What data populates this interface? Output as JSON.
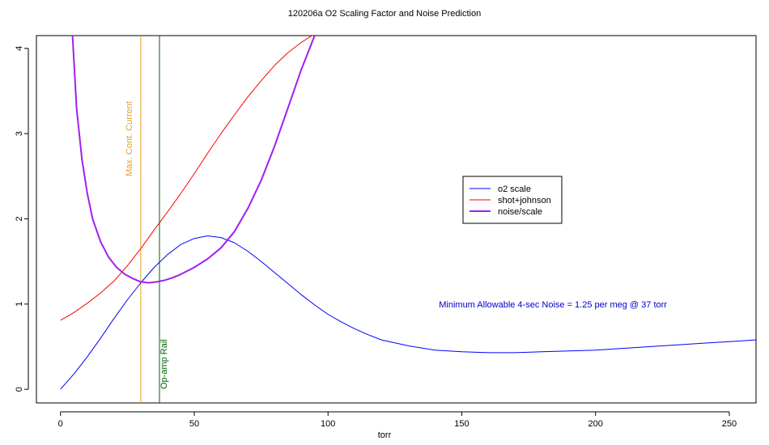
{
  "chart_data": {
    "type": "line",
    "title": "120206a   O2 Scaling Factor and Noise Prediction",
    "xlabel": "torr",
    "ylabel": "",
    "xlim": [
      -9,
      260
    ],
    "ylim": [
      -0.16,
      4.15
    ],
    "xticks": [
      0,
      50,
      100,
      150,
      200,
      250
    ],
    "yticks": [
      0,
      1,
      2,
      3,
      4
    ],
    "grid": false,
    "legend_position": "right-center",
    "series": [
      {
        "name": "o2 scale",
        "color": "#0000ff",
        "width": 1,
        "x": [
          0,
          5,
          10,
          15,
          20,
          25,
          30,
          35,
          40,
          45,
          50,
          55,
          60,
          65,
          70,
          75,
          80,
          85,
          90,
          95,
          100,
          105,
          110,
          115,
          120,
          130,
          140,
          150,
          160,
          170,
          180,
          190,
          200,
          210,
          220,
          230,
          240,
          250,
          260
        ],
        "y": [
          0.0,
          0.18,
          0.38,
          0.6,
          0.83,
          1.05,
          1.25,
          1.43,
          1.58,
          1.7,
          1.77,
          1.8,
          1.78,
          1.72,
          1.62,
          1.5,
          1.37,
          1.24,
          1.11,
          0.99,
          0.88,
          0.79,
          0.71,
          0.64,
          0.58,
          0.51,
          0.46,
          0.44,
          0.43,
          0.43,
          0.44,
          0.45,
          0.46,
          0.48,
          0.5,
          0.52,
          0.54,
          0.56,
          0.58
        ]
      },
      {
        "name": "shot+johnson",
        "color": "#ff0000",
        "width": 1,
        "x": [
          0,
          5,
          10,
          15,
          20,
          25,
          30,
          35,
          40,
          45,
          50,
          55,
          60,
          65,
          70,
          75,
          80,
          85,
          90,
          95
        ],
        "y": [
          0.81,
          0.9,
          1.01,
          1.13,
          1.27,
          1.45,
          1.65,
          1.87,
          2.08,
          2.3,
          2.53,
          2.77,
          3.0,
          3.22,
          3.43,
          3.62,
          3.8,
          3.95,
          4.07,
          4.17
        ]
      },
      {
        "name": "noise/scale",
        "color": "#a020f0",
        "width": 2,
        "x": [
          4.5,
          6,
          8,
          10,
          12,
          15,
          18,
          21,
          24,
          27,
          30,
          33,
          36,
          39,
          42,
          45,
          50,
          55,
          60,
          65,
          70,
          75,
          80,
          85,
          90,
          95
        ],
        "y": [
          4.15,
          3.3,
          2.7,
          2.3,
          2.0,
          1.73,
          1.55,
          1.43,
          1.35,
          1.3,
          1.26,
          1.25,
          1.26,
          1.28,
          1.31,
          1.35,
          1.43,
          1.53,
          1.66,
          1.85,
          2.12,
          2.45,
          2.85,
          3.3,
          3.75,
          4.15
        ]
      }
    ],
    "vlines": [
      {
        "x": 30,
        "color": "#e8a020",
        "label": "Max. Cont. Current"
      },
      {
        "x": 37,
        "color": "#006400",
        "label": "Op-amp Rail"
      }
    ],
    "annotation": {
      "text": "Minimum Allowable 4-sec Noise =  1.25  per meg @  37  torr",
      "x": 175,
      "y": 1.0,
      "color": "#0000cd"
    }
  }
}
